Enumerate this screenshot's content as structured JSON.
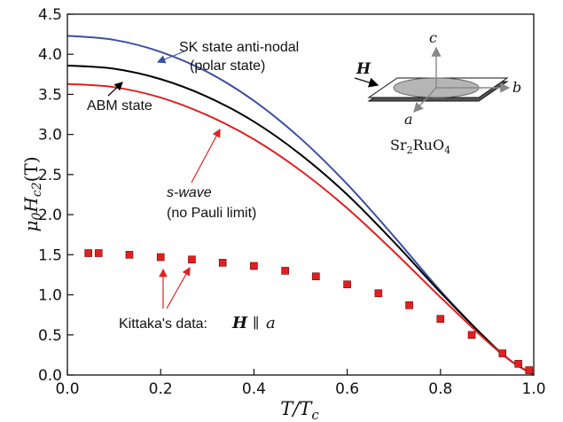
{
  "chart_data": {
    "type": "line",
    "xlabel": "T/T_c",
    "ylabel": "μ0Hc2(T)",
    "xlim": [
      0,
      1
    ],
    "ylim": [
      0,
      4.5
    ],
    "xticks": [
      "0.0",
      "0.2",
      "0.4",
      "0.6",
      "0.8",
      "1.0"
    ],
    "yticks": [
      "0.0",
      "0.5",
      "1.0",
      "1.5",
      "2.0",
      "2.5",
      "3.0",
      "3.5",
      "4.0",
      "4.5"
    ],
    "series": [
      {
        "name": "SK state anti-nodal (polar state)",
        "color": "#3a4fa3",
        "x": [
          0,
          0.1,
          0.2,
          0.3,
          0.4,
          0.5,
          0.6,
          0.7,
          0.8,
          0.9,
          0.95,
          1.0
        ],
        "y": [
          4.23,
          4.18,
          4.03,
          3.78,
          3.42,
          2.95,
          2.38,
          1.73,
          1.05,
          0.44,
          0.18,
          0.0
        ]
      },
      {
        "name": "ABM state",
        "color": "#000000",
        "x": [
          0,
          0.1,
          0.2,
          0.3,
          0.4,
          0.5,
          0.6,
          0.7,
          0.8,
          0.9,
          0.95,
          1.0
        ],
        "y": [
          3.86,
          3.82,
          3.69,
          3.47,
          3.16,
          2.75,
          2.25,
          1.66,
          1.03,
          0.44,
          0.18,
          0.0
        ]
      },
      {
        "name": "s-wave (no Pauli limit)",
        "color": "#e02020",
        "x": [
          0,
          0.1,
          0.2,
          0.3,
          0.4,
          0.5,
          0.6,
          0.7,
          0.8,
          0.9,
          0.95,
          1.0
        ],
        "y": [
          3.63,
          3.59,
          3.46,
          3.24,
          2.94,
          2.55,
          2.08,
          1.54,
          0.97,
          0.42,
          0.18,
          0.0
        ]
      },
      {
        "name": "Kittaka's data: H ∥ a",
        "type": "scatter",
        "color": "#e02020",
        "x": [
          0.045,
          0.067,
          0.133,
          0.2,
          0.267,
          0.333,
          0.4,
          0.467,
          0.533,
          0.6,
          0.667,
          0.733,
          0.8,
          0.867,
          0.933,
          0.967,
          0.99
        ],
        "y": [
          1.52,
          1.52,
          1.5,
          1.47,
          1.44,
          1.4,
          1.36,
          1.3,
          1.23,
          1.13,
          1.02,
          0.87,
          0.7,
          0.5,
          0.27,
          0.14,
          0.06
        ]
      }
    ],
    "annotations": {
      "sk_line1": "SK state anti-nodal",
      "sk_line2": "(polar state)",
      "abm": "ABM state",
      "swave_line1": "s-wave",
      "swave_line2": "(no Pauli limit)",
      "kittaka_prefix": "Kittaka's data:",
      "kittaka_H": "H",
      "kittaka_par": "∥",
      "kittaka_a": "a"
    },
    "inset": {
      "compound": "Sr2RuO4",
      "axis_c": "c",
      "axis_b": "b",
      "axis_a": "a",
      "field": "H"
    }
  }
}
